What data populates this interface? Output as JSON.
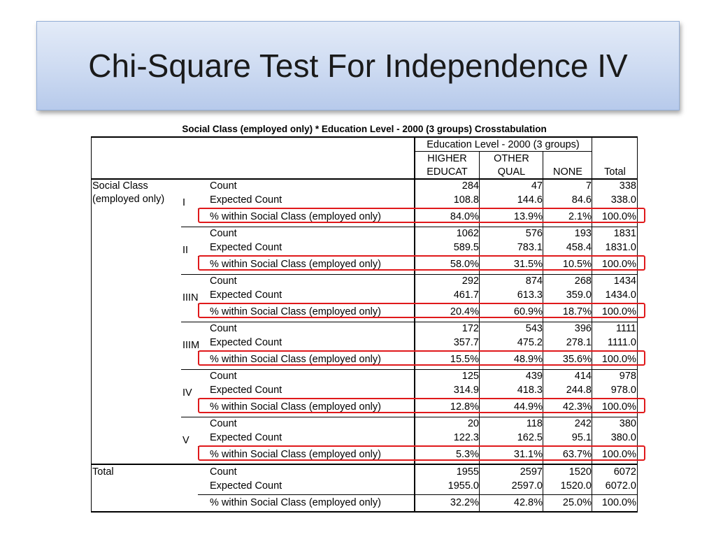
{
  "slide": {
    "title": "Chi-Square Test For Independence IV"
  },
  "table": {
    "caption": "Social Class (employed only) * Education Level - 2000 (3 groups) Crosstabulation",
    "col_group_header": "Education Level - 2000 (3 groups)",
    "columns": [
      {
        "line1": "HIGHER",
        "line2": "EDUCAT"
      },
      {
        "line1": "OTHER",
        "line2": "QUAL"
      },
      {
        "line1": "",
        "line2": "NONE"
      },
      {
        "line1": "",
        "line2": "Total"
      }
    ],
    "row_header_line1": "Social Class",
    "row_header_line2": "(employed only)",
    "stat_labels": [
      "Count",
      "Expected Count",
      "% within Social Class (employed only)"
    ],
    "groups": [
      {
        "label": "I",
        "rows": [
          [
            "284",
            "47",
            "7",
            "338"
          ],
          [
            "108.8",
            "144.6",
            "84.6",
            "338.0"
          ],
          [
            "84.0%",
            "13.9%",
            "2.1%",
            "100.0%"
          ]
        ]
      },
      {
        "label": "II",
        "rows": [
          [
            "1062",
            "576",
            "193",
            "1831"
          ],
          [
            "589.5",
            "783.1",
            "458.4",
            "1831.0"
          ],
          [
            "58.0%",
            "31.5%",
            "10.5%",
            "100.0%"
          ]
        ]
      },
      {
        "label": "IIIN",
        "rows": [
          [
            "292",
            "874",
            "268",
            "1434"
          ],
          [
            "461.7",
            "613.3",
            "359.0",
            "1434.0"
          ],
          [
            "20.4%",
            "60.9%",
            "18.7%",
            "100.0%"
          ]
        ]
      },
      {
        "label": "IIIM",
        "rows": [
          [
            "172",
            "543",
            "396",
            "1111"
          ],
          [
            "357.7",
            "475.2",
            "278.1",
            "1111.0"
          ],
          [
            "15.5%",
            "48.9%",
            "35.6%",
            "100.0%"
          ]
        ]
      },
      {
        "label": "IV",
        "rows": [
          [
            "125",
            "439",
            "414",
            "978"
          ],
          [
            "314.9",
            "418.3",
            "244.8",
            "978.0"
          ],
          [
            "12.8%",
            "44.9%",
            "42.3%",
            "100.0%"
          ]
        ]
      },
      {
        "label": "V",
        "rows": [
          [
            "20",
            "118",
            "242",
            "380"
          ],
          [
            "122.3",
            "162.5",
            "95.1",
            "380.0"
          ],
          [
            "5.3%",
            "31.1%",
            "63.7%",
            "100.0%"
          ]
        ]
      }
    ],
    "total": {
      "label": "Total",
      "rows": [
        [
          "1955",
          "2597",
          "1520",
          "6072"
        ],
        [
          "1955.0",
          "2597.0",
          "1520.0",
          "6072.0"
        ],
        [
          "32.2%",
          "42.8%",
          "25.0%",
          "100.0%"
        ]
      ]
    }
  },
  "colors": {
    "highlight": "#e0191b",
    "title_band": "#cfdcf2"
  }
}
